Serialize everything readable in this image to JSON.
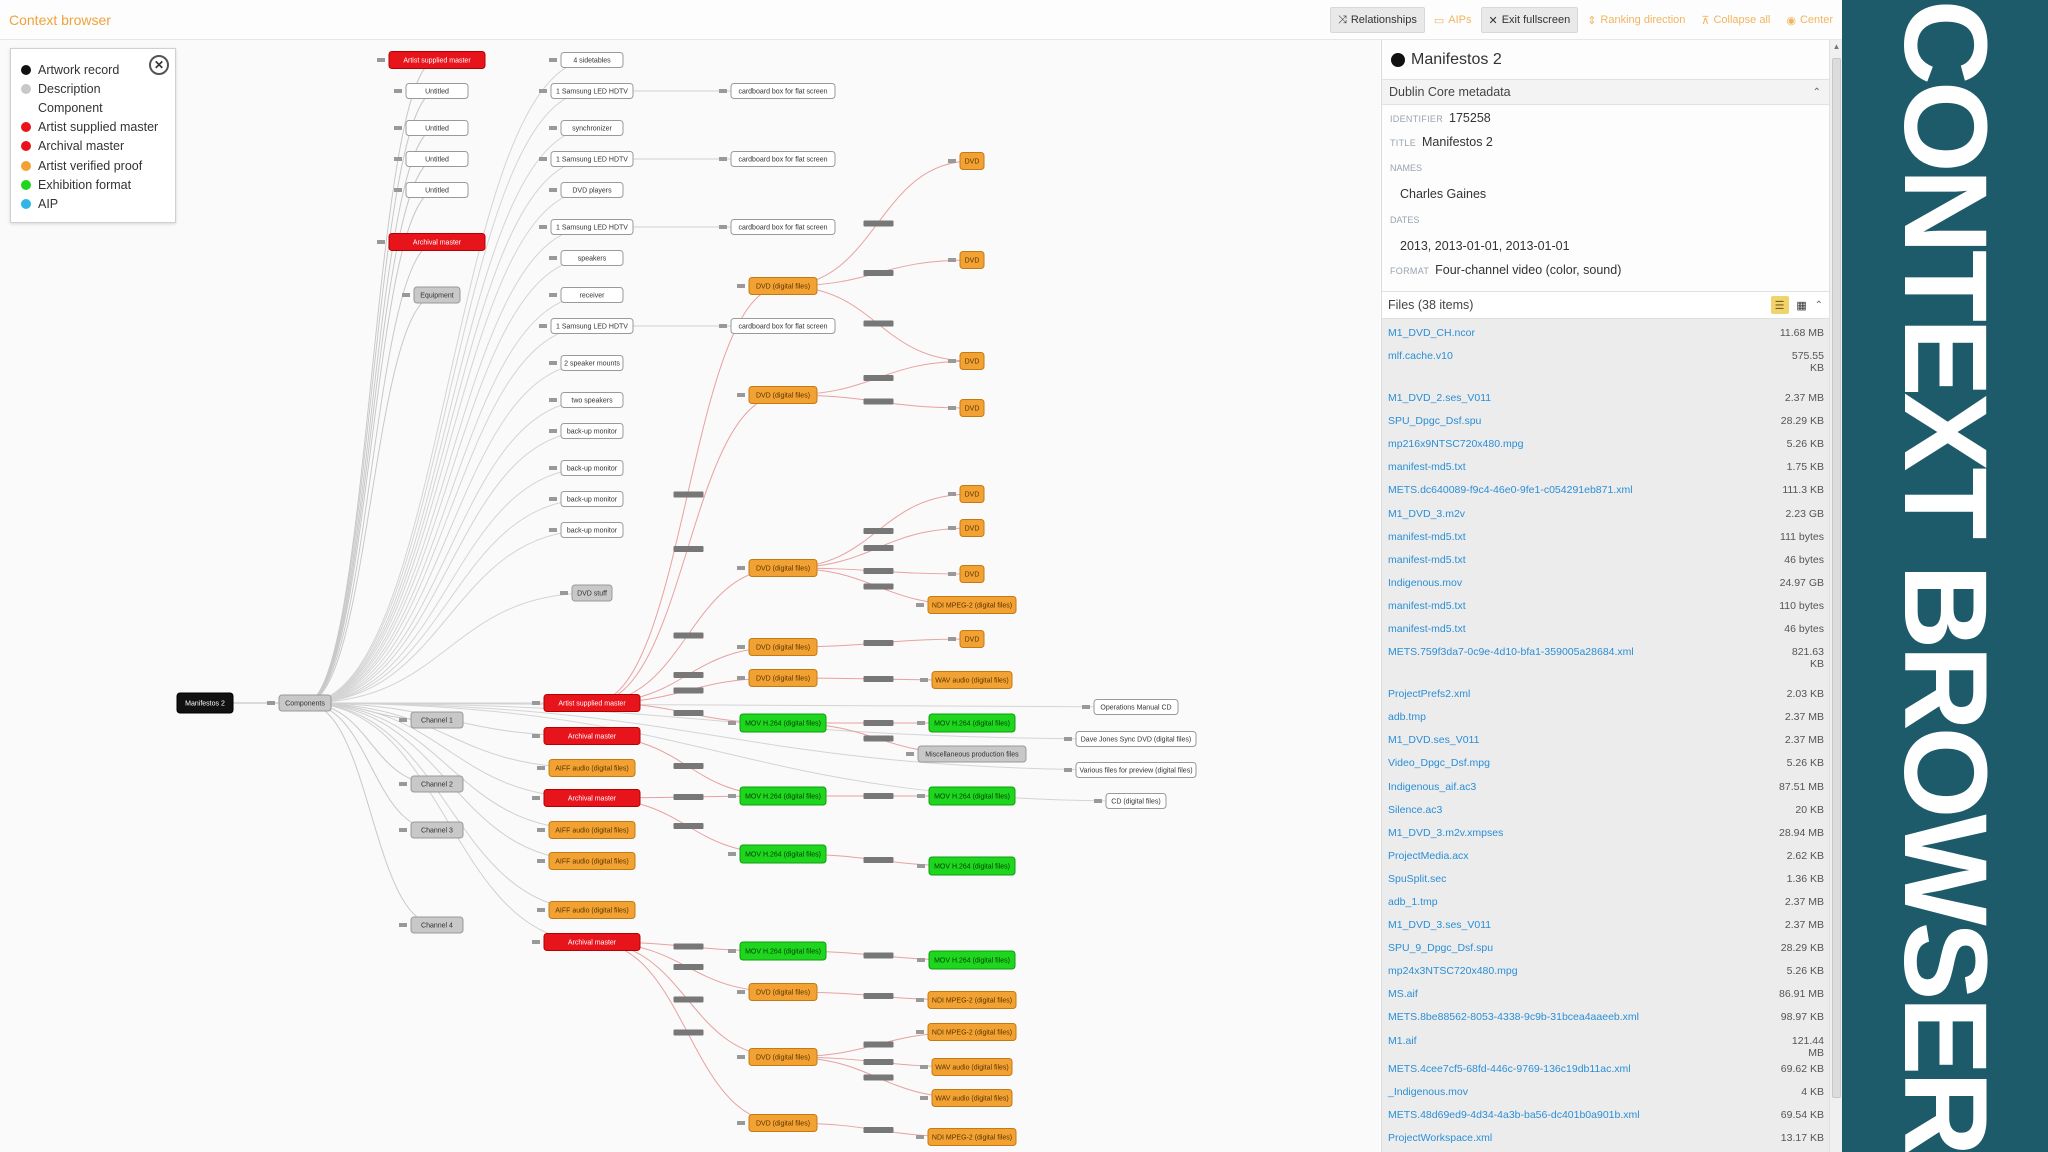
{
  "app": {
    "title": "Context browser"
  },
  "toolbar": {
    "buttons": [
      {
        "label": "Relationships",
        "icon": "shuffle-icon",
        "state": "active"
      },
      {
        "label": "AIPs",
        "icon": "box-icon",
        "state": "disabled"
      },
      {
        "label": "Exit fullscreen",
        "icon": "exit-fullscreen-icon",
        "state": "active"
      },
      {
        "label": "Ranking direction",
        "icon": "sort-icon",
        "state": "disabled"
      },
      {
        "label": "Collapse all",
        "icon": "collapse-icon",
        "state": "disabled"
      },
      {
        "label": "Center",
        "icon": "target-icon",
        "state": "disabled"
      }
    ]
  },
  "legend": {
    "close_icon": "close-icon",
    "items": [
      {
        "label": "Artwork record",
        "color": "#111111"
      },
      {
        "label": "Description",
        "color": "#c8c8c8"
      },
      {
        "label": "Component",
        "color": ""
      },
      {
        "label": "Artist supplied master",
        "color": "#e8141c"
      },
      {
        "label": "Archival master",
        "color": "#e8141c"
      },
      {
        "label": "Artist verified proof",
        "color": "#f2a233"
      },
      {
        "label": "Exhibition format",
        "color": "#1ed61e"
      },
      {
        "label": "AIP",
        "color": "#2fb6e6"
      }
    ]
  },
  "colors": {
    "artwork": "#111111",
    "description": "#c8c8c8",
    "component": "#ffffff",
    "master": "#e8141c",
    "proof": "#f2a233",
    "exhibition": "#1ed61e",
    "aip": "#2fb6e6",
    "accent": "#f0a23a",
    "banner": "#1e5b6a"
  },
  "graph": {
    "root": {
      "label": "Manifestos 2",
      "type": "artwork"
    },
    "nodes": [
      {
        "id": "components",
        "label": "Components",
        "type": "description"
      },
      {
        "id": "equipment",
        "label": "Equipment",
        "type": "description"
      },
      {
        "id": "ch1",
        "label": "Channel 1",
        "type": "description"
      },
      {
        "id": "ch2",
        "label": "Channel 2",
        "type": "description"
      },
      {
        "id": "ch3",
        "label": "Channel 3",
        "type": "description"
      },
      {
        "id": "ch4",
        "label": "Channel 4",
        "type": "description"
      },
      {
        "id": "dvdstuff",
        "label": "DVD stuff",
        "type": "description"
      },
      {
        "id": "misc",
        "label": "Miscellaneous production files",
        "type": "description"
      },
      {
        "id": "m1",
        "label": "Artist supplied master",
        "type": "master"
      },
      {
        "id": "m2",
        "label": "Archival master",
        "type": "master"
      },
      {
        "id": "u1",
        "label": "Untitled",
        "type": "component"
      },
      {
        "id": "u2",
        "label": "Untitled",
        "type": "component"
      },
      {
        "id": "u3",
        "label": "Untitled",
        "type": "component"
      },
      {
        "id": "u4",
        "label": "Untitled",
        "type": "component"
      },
      {
        "id": "sd",
        "label": "4 sidetables",
        "type": "component"
      },
      {
        "id": "tv1",
        "label": "1 Samsung LED HDTV",
        "type": "component"
      },
      {
        "id": "sync",
        "label": "synchronizer",
        "type": "component"
      },
      {
        "id": "tv2",
        "label": "1 Samsung LED HDTV",
        "type": "component"
      },
      {
        "id": "dvdp",
        "label": "DVD players",
        "type": "component"
      },
      {
        "id": "tv3",
        "label": "1 Samsung LED HDTV",
        "type": "component"
      },
      {
        "id": "spk",
        "label": "speakers",
        "type": "component"
      },
      {
        "id": "rcv",
        "label": "receiver",
        "type": "component"
      },
      {
        "id": "tv4",
        "label": "1 Samsung LED HDTV",
        "type": "component"
      },
      {
        "id": "spm",
        "label": "2 speaker mounts",
        "type": "component"
      },
      {
        "id": "two",
        "label": "two speakers",
        "type": "component"
      },
      {
        "id": "bk1",
        "label": "back-up monitor",
        "type": "component"
      },
      {
        "id": "bk2",
        "label": "back-up monitor",
        "type": "component"
      },
      {
        "id": "bk3",
        "label": "back-up monitor",
        "type": "component"
      },
      {
        "id": "bk4",
        "label": "back-up monitor",
        "type": "component"
      },
      {
        "id": "cb1",
        "label": "cardboard box for flat screen",
        "type": "component"
      },
      {
        "id": "cb2",
        "label": "cardboard box for flat screen",
        "type": "component"
      },
      {
        "id": "cb3",
        "label": "cardboard box for flat screen",
        "type": "component"
      },
      {
        "id": "cb4",
        "label": "cardboard box for flat screen",
        "type": "component"
      },
      {
        "id": "ops",
        "label": "Operations Manual CD",
        "type": "component"
      },
      {
        "id": "dave",
        "label": "Dave Jones Sync DVD (digital files)",
        "type": "component"
      },
      {
        "id": "var",
        "label": "Various files for preview (digital files)",
        "type": "component"
      },
      {
        "id": "cdf",
        "label": "CD (digital files)",
        "type": "component"
      },
      {
        "id": "dvdf1",
        "label": "DVD (digital files)",
        "type": "proof"
      },
      {
        "id": "dvdf2",
        "label": "DVD (digital files)",
        "type": "proof"
      },
      {
        "id": "dvdf3",
        "label": "DVD (digital files)",
        "type": "proof"
      },
      {
        "id": "dvdf4",
        "label": "DVD (digital files)",
        "type": "proof"
      },
      {
        "id": "dvdf5",
        "label": "DVD (digital files)",
        "type": "proof"
      },
      {
        "id": "dvdf6",
        "label": "DVD (digital files)",
        "type": "proof"
      },
      {
        "id": "dvdf7",
        "label": "DVD (digital files)",
        "type": "proof"
      },
      {
        "id": "dvdf8",
        "label": "DVD (digital files)",
        "type": "proof"
      },
      {
        "id": "aiff1",
        "label": "AIFF audio (digital files)",
        "type": "proof"
      },
      {
        "id": "aiff2",
        "label": "AIFF audio (digital files)",
        "type": "proof"
      },
      {
        "id": "aiff3",
        "label": "AIFF audio (digital files)",
        "type": "proof"
      },
      {
        "id": "aiff4",
        "label": "AIFF audio (digital files)",
        "type": "proof"
      },
      {
        "id": "dvd1",
        "label": "DVD",
        "type": "proof"
      },
      {
        "id": "dvd2",
        "label": "DVD",
        "type": "proof"
      },
      {
        "id": "dvd3",
        "label": "DVD",
        "type": "proof"
      },
      {
        "id": "dvd4",
        "label": "DVD",
        "type": "proof"
      },
      {
        "id": "dvd5",
        "label": "DVD",
        "type": "proof"
      },
      {
        "id": "dvd6",
        "label": "DVD",
        "type": "proof"
      },
      {
        "id": "dvd7",
        "label": "DVD",
        "type": "proof"
      },
      {
        "id": "dvd8",
        "label": "DVD",
        "type": "proof"
      },
      {
        "id": "mpeg1",
        "label": "NDI MPEG-2 (digital files)",
        "type": "proof"
      },
      {
        "id": "mpeg2",
        "label": "NDI MPEG-2 (digital files)",
        "type": "proof"
      },
      {
        "id": "mpeg3",
        "label": "NDI MPEG-2 (digital files)",
        "type": "proof"
      },
      {
        "id": "mpeg4",
        "label": "NDI MPEG-2 (digital files)",
        "type": "proof"
      },
      {
        "id": "wav1",
        "label": "WAV audio (digital files)",
        "type": "proof"
      },
      {
        "id": "wav2",
        "label": "WAV audio (digital files)",
        "type": "proof"
      },
      {
        "id": "wav3",
        "label": "WAV audio (digital files)",
        "type": "proof"
      },
      {
        "id": "h1",
        "label": "MOV H.264 (digital files)",
        "type": "exhibition"
      },
      {
        "id": "h2",
        "label": "MOV H.264 (digital files)",
        "type": "exhibition"
      },
      {
        "id": "h3",
        "label": "MOV H.264 (digital files)",
        "type": "exhibition"
      },
      {
        "id": "h4",
        "label": "MOV H.264 (digital files)",
        "type": "exhibition"
      },
      {
        "id": "h5",
        "label": "MOV H.264 (digital files)",
        "type": "exhibition"
      },
      {
        "id": "h6",
        "label": "MOV H.264 (digital files)",
        "type": "exhibition"
      },
      {
        "id": "h7",
        "label": "MOV H.264 (digital files)",
        "type": "exhibition"
      },
      {
        "id": "h8",
        "label": "MOV H.264 (digital files)",
        "type": "exhibition"
      }
    ]
  },
  "panel": {
    "title": "Manifestos 2",
    "metadata_section": "Dublin Core metadata",
    "identifier_label": "IDENTIFIER",
    "identifier": "175258",
    "title_label": "TITLE",
    "title_value": "Manifestos 2",
    "names_label": "NAMES",
    "names_value": "Charles Gaines",
    "dates_label": "DATES",
    "dates_value": "2013, 2013-01-01, 2013-01-01",
    "format_label": "FORMAT",
    "format_value": "Four-channel video (color, sound)",
    "files_label": "Files (38 items)",
    "files": [
      {
        "name": "M1_DVD_CH.ncor",
        "size": "11.68 MB"
      },
      {
        "name": "mlf.cache.v10",
        "size": "575.55 KB"
      },
      {
        "name": "M1_DVD_2.ses_V011",
        "size": "2.37 MB"
      },
      {
        "name": "SPU_Dpgc_Dsf.spu",
        "size": "28.29 KB"
      },
      {
        "name": "mp216x9NTSC720x480.mpg",
        "size": "5.26 KB"
      },
      {
        "name": "manifest-md5.txt",
        "size": "1.75 KB"
      },
      {
        "name": "METS.dc640089-f9c4-46e0-9fe1-c054291eb871.xml",
        "size": "111.3 KB"
      },
      {
        "name": "M1_DVD_3.m2v",
        "size": "2.23 GB"
      },
      {
        "name": "manifest-md5.txt",
        "size": "111 bytes"
      },
      {
        "name": "manifest-md5.txt",
        "size": "46 bytes"
      },
      {
        "name": "Indigenous.mov",
        "size": "24.97 GB"
      },
      {
        "name": "manifest-md5.txt",
        "size": "110 bytes"
      },
      {
        "name": "manifest-md5.txt",
        "size": "46 bytes"
      },
      {
        "name": "METS.759f3da7-0c9e-4d10-bfa1-359005a28684.xml",
        "size": "821.63 KB"
      },
      {
        "name": "ProjectPrefs2.xml",
        "size": "2.03 KB"
      },
      {
        "name": "adb.tmp",
        "size": "2.37 MB"
      },
      {
        "name": "M1_DVD.ses_V011",
        "size": "2.37 MB"
      },
      {
        "name": "Video_Dpgc_Dsf.mpg",
        "size": "5.26 KB"
      },
      {
        "name": "Indigenous_aif.ac3",
        "size": "87.51 MB"
      },
      {
        "name": "Silence.ac3",
        "size": "20 KB"
      },
      {
        "name": "M1_DVD_3.m2v.xmpses",
        "size": "28.94 MB"
      },
      {
        "name": "ProjectMedia.acx",
        "size": "2.62 KB"
      },
      {
        "name": "SpuSplit.sec",
        "size": "1.36 KB"
      },
      {
        "name": "adb_1.tmp",
        "size": "2.37 MB"
      },
      {
        "name": "M1_DVD_3.ses_V011",
        "size": "2.37 MB"
      },
      {
        "name": "SPU_9_Dpgc_Dsf.spu",
        "size": "28.29 KB"
      },
      {
        "name": "mp24x3NTSC720x480.mpg",
        "size": "5.26 KB"
      },
      {
        "name": "MS.aif",
        "size": "86.91 MB"
      },
      {
        "name": "METS.8be88562-8053-4338-9c9b-31bcea4aaeeb.xml",
        "size": "98.97 KB"
      },
      {
        "name": "M1.aif",
        "size": "121.44 MB"
      },
      {
        "name": "METS.4cee7cf5-68fd-446c-9769-136c19db11ac.xml",
        "size": "69.62 KB"
      },
      {
        "name": "_Indigenous.mov",
        "size": "4 KB"
      },
      {
        "name": "METS.48d69ed9-4d34-4a3b-ba56-dc401b0a901b.xml",
        "size": "69.54 KB"
      },
      {
        "name": "ProjectWorkspace.xml",
        "size": "13.17 KB"
      }
    ]
  },
  "banner": {
    "text": "CONTEXT BROWSER"
  }
}
